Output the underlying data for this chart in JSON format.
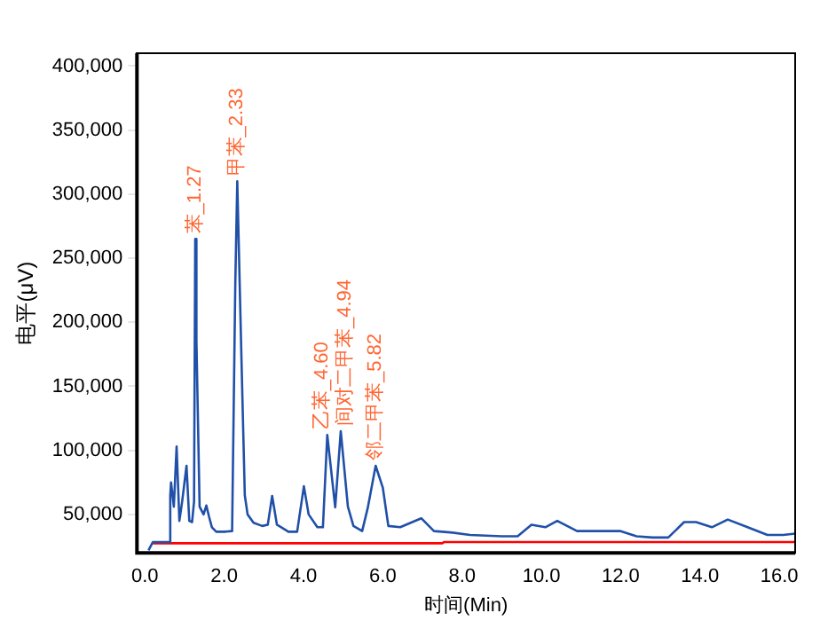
{
  "chart_data": {
    "type": "line",
    "xlabel": "时间(Min)",
    "ylabel": "电平(μV)",
    "xlim": [
      -0.2,
      16.4
    ],
    "xticks": [
      {
        "value": 0,
        "label": "0.0"
      },
      {
        "value": 2,
        "label": "2.0"
      },
      {
        "value": 4,
        "label": "4.0"
      },
      {
        "value": 6,
        "label": "6.0"
      },
      {
        "value": 8,
        "label": "8.0"
      },
      {
        "value": 10,
        "label": "10.0"
      },
      {
        "value": 12,
        "label": "12.0"
      },
      {
        "value": 14,
        "label": "14.0"
      },
      {
        "value": 16,
        "label": "16.0"
      }
    ],
    "ylim": [
      20000,
      410000
    ],
    "yticks": [
      {
        "value": 50000,
        "label": "50,000"
      },
      {
        "value": 100000,
        "label": "100,000"
      },
      {
        "value": 150000,
        "label": "150,000"
      },
      {
        "value": 200000,
        "label": "200,000"
      },
      {
        "value": 250000,
        "label": "250,000"
      },
      {
        "value": 300000,
        "label": "300,000"
      },
      {
        "value": 350000,
        "label": "350,000"
      },
      {
        "value": 400000,
        "label": "400,000"
      }
    ],
    "grid": false,
    "legend": false,
    "marker": "none",
    "line_style": "solid",
    "series": [
      {
        "color": "#2050a8",
        "x": [
          0.09,
          0.2,
          0.4,
          0.6,
          0.64,
          0.66,
          0.73,
          0.8,
          0.87,
          0.94,
          1.05,
          1.12,
          1.19,
          1.24,
          1.27,
          1.3,
          1.38,
          1.48,
          1.55,
          1.62,
          1.69,
          1.8,
          2.0,
          2.2,
          2.28,
          2.33,
          2.44,
          2.52,
          2.59,
          2.74,
          2.96,
          3.1,
          3.21,
          3.33,
          3.62,
          3.84,
          4.01,
          4.13,
          4.35,
          4.49,
          4.6,
          4.8,
          4.94,
          5.12,
          5.26,
          5.48,
          5.62,
          5.82,
          6.0,
          6.14,
          6.44,
          6.97,
          7.29,
          7.7,
          8.2,
          9.0,
          9.4,
          9.75,
          10.1,
          10.4,
          10.9,
          11.5,
          12.0,
          12.4,
          12.8,
          13.2,
          13.6,
          13.9,
          14.3,
          14.7,
          15.2,
          15.7,
          16.1,
          16.4
        ],
        "values": [
          22000,
          28400,
          28400,
          28400,
          65000,
          75000,
          56000,
          103000,
          45000,
          60000,
          88000,
          45000,
          44000,
          60000,
          265000,
          186000,
          56000,
          50000,
          57000,
          48000,
          40000,
          36500,
          36500,
          37000,
          230000,
          310000,
          166000,
          65000,
          50000,
          43500,
          41000,
          42000,
          64500,
          42000,
          36500,
          36500,
          72000,
          50000,
          40000,
          40000,
          112000,
          55500,
          115000,
          56000,
          41000,
          37000,
          55000,
          88000,
          71000,
          41000,
          40000,
          47000,
          37000,
          36000,
          34000,
          33000,
          33000,
          42000,
          40000,
          45000,
          37000,
          37000,
          37000,
          33000,
          32000,
          32000,
          44000,
          44000,
          40000,
          46000,
          40000,
          34000,
          34000,
          35000
        ]
      },
      {
        "color": "#ff0000",
        "x": [
          0.2,
          7.5,
          7.55,
          16.4
        ],
        "values": [
          27500,
          27500,
          28500,
          28500
        ]
      }
    ],
    "annotations": [
      {
        "text": "苯_1.27",
        "x": 1.27,
        "y": 265000
      },
      {
        "text": "甲苯_2.33",
        "x": 2.33,
        "y": 310000
      },
      {
        "text": "乙苯_4.60",
        "x": 4.6,
        "y": 112000
      },
      {
        "text": "间对二甲苯_4.94",
        "x": 4.94,
        "y": 115000
      },
      {
        "text": "邻二甲苯_5.82",
        "x": 5.82,
        "y": 88000
      }
    ]
  }
}
